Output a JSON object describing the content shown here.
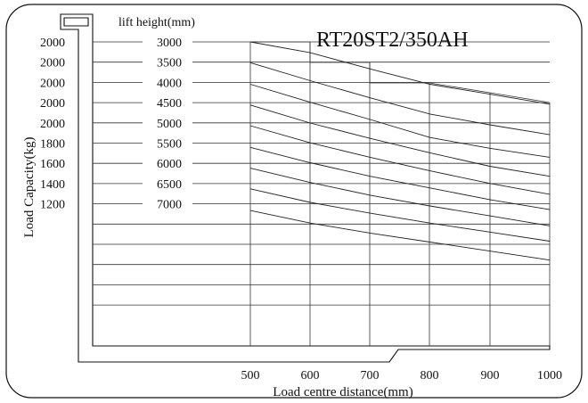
{
  "chart_data": {
    "type": "line",
    "title": "RT20ST2/350AH",
    "xlabel": "Load centre distance(mm)",
    "ylabel": "Load Capacity(kg)",
    "lift_height_label": "lift height(mm)",
    "x_ticks": [
      "500",
      "600",
      "700",
      "800",
      "900",
      "1000"
    ],
    "rows": [
      {
        "capacity": "2000",
        "lift_height": "3000"
      },
      {
        "capacity": "2000",
        "lift_height": "3500"
      },
      {
        "capacity": "2000",
        "lift_height": "4000"
      },
      {
        "capacity": "2000",
        "lift_height": "4500"
      },
      {
        "capacity": "2000",
        "lift_height": "5000"
      },
      {
        "capacity": "1800",
        "lift_height": "5500"
      },
      {
        "capacity": "1600",
        "lift_height": "6000"
      },
      {
        "capacity": "1400",
        "lift_height": "6500"
      },
      {
        "capacity": "1200",
        "lift_height": "7000"
      }
    ],
    "x": [
      500,
      600,
      700,
      800,
      900,
      1000
    ],
    "series": [
      {
        "name": "3000",
        "values": [
          2000,
          1880,
          1700,
          1530,
          1420,
          1310
        ]
      },
      {
        "name": "3500",
        "values": [
          1770,
          1570,
          1380,
          1200,
          1080,
          970
        ]
      },
      {
        "name": "4000",
        "values": [
          1530,
          1330,
          1140,
          940,
          820,
          720
        ]
      },
      {
        "name": "4500",
        "values": [
          1300,
          1100,
          930,
          770,
          620,
          510
        ]
      },
      {
        "name": "5000",
        "values": [
          1070,
          880,
          720,
          570,
          430,
          310
        ]
      },
      {
        "name": "5500",
        "values": [
          830,
          660,
          510,
          380,
          250,
          140
        ]
      },
      {
        "name": "6000",
        "values": [
          600,
          440,
          300,
          180,
          70,
          -40
        ]
      },
      {
        "name": "6500",
        "values": [
          370,
          220,
          100,
          -10,
          -110,
          -210
        ]
      },
      {
        "name": "7000",
        "values": [
          130,
          -10,
          -120,
          -220,
          -320,
          -420
        ]
      }
    ],
    "grid": true
  }
}
